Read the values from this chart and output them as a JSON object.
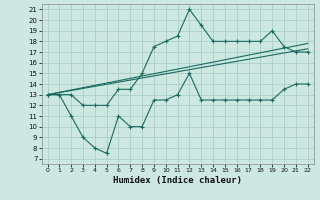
{
  "xlabel": "Humidex (Indice chaleur)",
  "bg_color": "#cce8e0",
  "grid_color": "#aad0c8",
  "line_color": "#1a6b60",
  "xlim": [
    -0.5,
    22.5
  ],
  "ylim": [
    6.5,
    21.5
  ],
  "xticks": [
    0,
    1,
    2,
    3,
    4,
    5,
    6,
    7,
    8,
    9,
    10,
    11,
    12,
    13,
    14,
    15,
    16,
    17,
    18,
    19,
    20,
    21,
    22
  ],
  "yticks": [
    7,
    8,
    9,
    10,
    11,
    12,
    13,
    14,
    15,
    16,
    17,
    18,
    19,
    20,
    21
  ],
  "line1_x": [
    0,
    1,
    2,
    3,
    4,
    5,
    6,
    7,
    8,
    9,
    10,
    11,
    12,
    13,
    14,
    15,
    16,
    17,
    18,
    19,
    20,
    21,
    22
  ],
  "line1_y": [
    13,
    13,
    11,
    9,
    8,
    7.5,
    11,
    10,
    10,
    12.5,
    12.5,
    13,
    15,
    12.5,
    12.5,
    12.5,
    12.5,
    12.5,
    12.5,
    12.5,
    13.5,
    14,
    14
  ],
  "line2_x": [
    0,
    1,
    2,
    3,
    4,
    5,
    6,
    7,
    8,
    9,
    10,
    11,
    12,
    13,
    14,
    15,
    16,
    17,
    18,
    19,
    20,
    21,
    22
  ],
  "line2_y": [
    13,
    13,
    13,
    12,
    12,
    12,
    13.5,
    13.5,
    15,
    17.5,
    18,
    18.5,
    21,
    19.5,
    18,
    18,
    18,
    18,
    18,
    19,
    17.5,
    17,
    17
  ],
  "line3_x": [
    0,
    22
  ],
  "line3_y": [
    13,
    17.3
  ],
  "line4_x": [
    0,
    22
  ],
  "line4_y": [
    13,
    17.8
  ]
}
